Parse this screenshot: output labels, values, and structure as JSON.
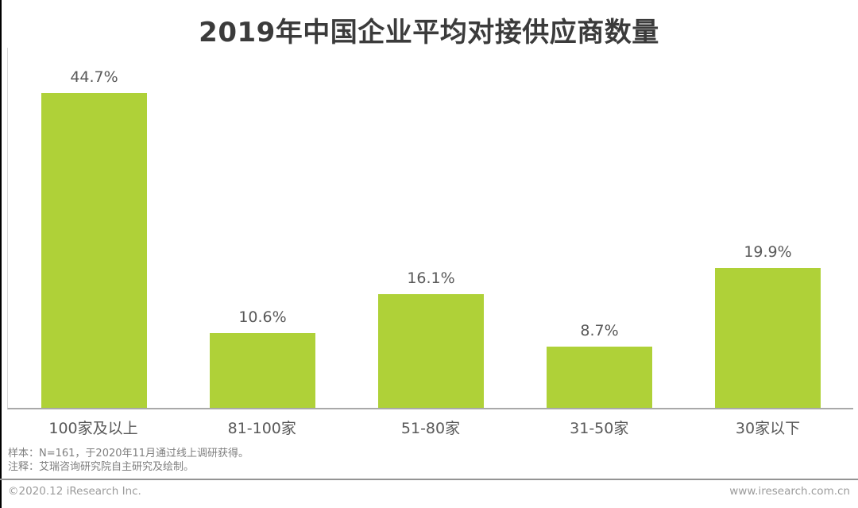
{
  "title": "2019年中国企业平均对接供应商数量",
  "chart_data": {
    "type": "bar",
    "title": "2019年中国企业平均对接供应商数量",
    "categories": [
      "100家及以上",
      "81-100家",
      "51-80家",
      "31-50家",
      "30家以下"
    ],
    "values": [
      44.7,
      10.6,
      16.1,
      8.7,
      19.9
    ],
    "value_labels": [
      "44.7%",
      "10.6%",
      "16.1%",
      "8.7%",
      "19.9%"
    ],
    "xlabel": "",
    "ylabel": "",
    "ylim": [
      0,
      50
    ],
    "grid": false,
    "legend": false,
    "value_label_position": "above-bars",
    "bar_color": "#AFD138",
    "axis_line_color": "#a9a9a9"
  },
  "notes": {
    "sample": "样本：N=161，于2020年11月通过线上调研获得。",
    "annotation": "注释：艾瑞咨询研究院自主研究及绘制。"
  },
  "footer": {
    "copyright": "©2020.12 iResearch Inc.",
    "website": "www.iresearch.com.cn"
  }
}
